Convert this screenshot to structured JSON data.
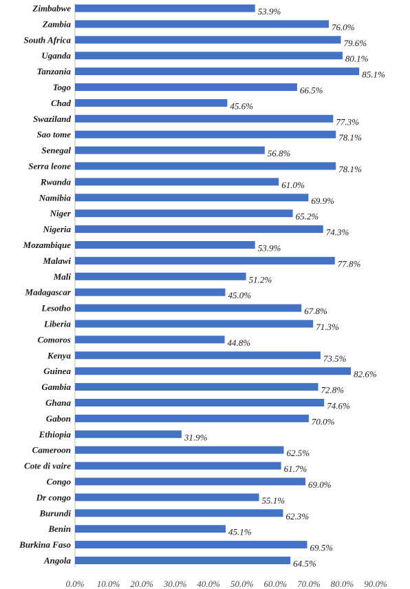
{
  "chart_data": {
    "type": "bar",
    "orientation": "horizontal",
    "categories": [
      "Zimbabwe",
      "Zambia",
      "South Africa",
      "Uganda",
      "Tanzania",
      "Togo",
      "Chad",
      "Swaziland",
      "Sao tome",
      "Senegal",
      "Serra leone",
      "Rwanda",
      "Namibia",
      "Niger",
      "Nigeria",
      "Mozambique",
      "Malawi",
      "Mali",
      "Madagascar",
      "Lesotho",
      "Liberia",
      "Comoros",
      "Kenya",
      "Guinea",
      "Gambia",
      "Ghana",
      "Gabon",
      "Ethiopia",
      "Cameroon",
      "Cote di vaire",
      "Congo",
      "Dr congo",
      "Burundi",
      "Benin",
      "Burkina Faso",
      "Angola"
    ],
    "values": [
      53.9,
      76.0,
      79.6,
      80.1,
      85.1,
      66.5,
      45.6,
      77.3,
      78.1,
      56.8,
      78.1,
      61.0,
      69.9,
      65.2,
      74.3,
      53.9,
      77.8,
      51.2,
      45.0,
      67.8,
      71.3,
      44.8,
      73.5,
      82.6,
      72.8,
      74.6,
      70.0,
      31.9,
      62.5,
      61.7,
      69.0,
      55.1,
      62.3,
      45.1,
      69.5,
      64.5
    ],
    "data_labels": [
      "53.9%",
      "76.0%",
      "79.6%",
      "80.1%",
      "85.1%",
      "66.5%",
      "45.6%",
      "77.3%",
      "78.1%",
      "56.8%",
      "78.1%",
      "61.0%",
      "69.9%",
      "65.2%",
      "74.3%",
      "53.9%",
      "77.8%",
      "51.2%",
      "45.0%",
      "67.8%",
      "71.3%",
      "44.8%",
      "73.5%",
      "82.6%",
      "72.8%",
      "74.6%",
      "70.0%",
      "31.9%",
      "62.5%",
      "61.7%",
      "69.0%",
      "55.1%",
      "62.3%",
      "45.1%",
      "69.5%",
      "64.5%"
    ],
    "x_ticks": [
      "0.0%",
      "10.0%",
      "20.0%",
      "30.0%",
      "40.0%",
      "50.0%",
      "60.0%",
      "70.0%",
      "80.0%",
      "90.0%"
    ],
    "xlim": [
      0,
      90
    ],
    "bar_color": "#4472C4",
    "grid": false,
    "legend": "none",
    "title": "",
    "xlabel": "",
    "ylabel": ""
  }
}
